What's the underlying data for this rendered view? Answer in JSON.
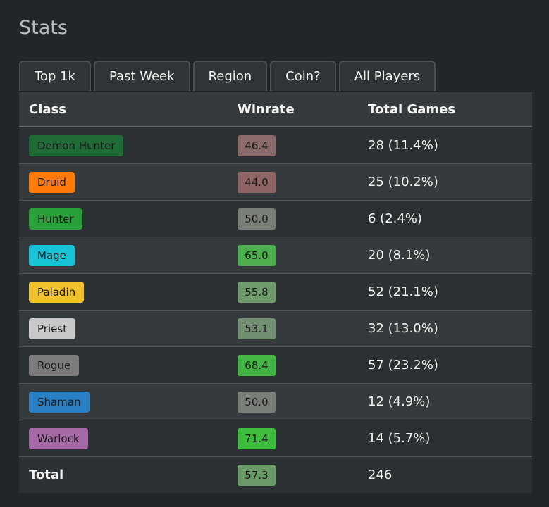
{
  "page": {
    "title": "Stats"
  },
  "tabs": [
    {
      "label": "Top 1k"
    },
    {
      "label": "Past Week"
    },
    {
      "label": "Region"
    },
    {
      "label": "Coin?"
    },
    {
      "label": "All Players"
    }
  ],
  "table": {
    "headers": {
      "class": "Class",
      "winrate": "Winrate",
      "games": "Total Games"
    },
    "rows": [
      {
        "class": "Demon Hunter",
        "class_color": "#1f6b35",
        "winrate": "46.4",
        "winrate_color": "#8b6a6b",
        "games": "28 (11.4%)"
      },
      {
        "class": "Druid",
        "class_color": "#ff7a0a",
        "winrate": "44.0",
        "winrate_color": "#8e6465",
        "games": "25 (10.2%)"
      },
      {
        "class": "Hunter",
        "class_color": "#2aa03a",
        "winrate": "50.0",
        "winrate_color": "#7a7e78",
        "games": "6 (2.4%)"
      },
      {
        "class": "Mage",
        "class_color": "#18c2d6",
        "winrate": "65.0",
        "winrate_color": "#4cae4c",
        "games": "20 (8.1%)"
      },
      {
        "class": "Paladin",
        "class_color": "#f0c22e",
        "winrate": "55.8",
        "winrate_color": "#6e9a6c",
        "games": "52 (21.1%)"
      },
      {
        "class": "Priest",
        "class_color": "#c8c8c8",
        "winrate": "53.1",
        "winrate_color": "#738f71",
        "games": "32 (13.0%)"
      },
      {
        "class": "Rogue",
        "class_color": "#7b7b7b",
        "winrate": "68.4",
        "winrate_color": "#44b544",
        "games": "57 (23.2%)"
      },
      {
        "class": "Shaman",
        "class_color": "#2a7fc2",
        "winrate": "50.0",
        "winrate_color": "#7a7e78",
        "games": "12 (4.9%)"
      },
      {
        "class": "Warlock",
        "class_color": "#a569a5",
        "winrate": "71.4",
        "winrate_color": "#3dbc3d",
        "games": "14 (5.7%)"
      }
    ],
    "total": {
      "label": "Total",
      "winrate": "57.3",
      "winrate_color": "#6a9a68",
      "games": "246"
    }
  }
}
